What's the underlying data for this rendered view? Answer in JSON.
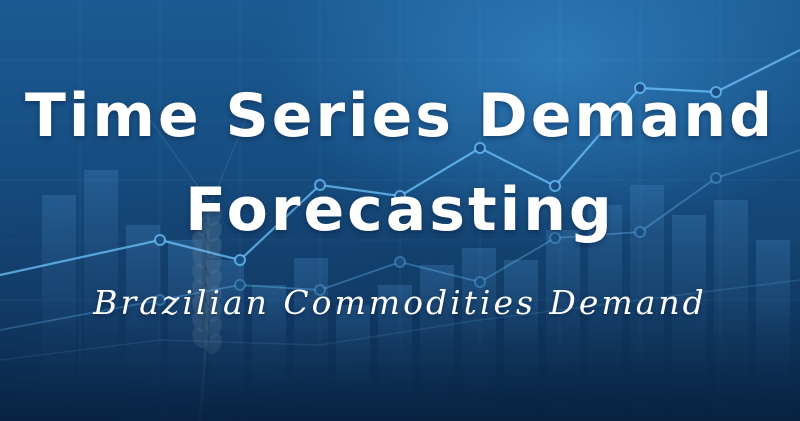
{
  "banner": {
    "title_line_1": "Time Series Demand",
    "title_line_2": "Forecasting",
    "subtitle": "Brazilian Commodities Demand"
  },
  "colors": {
    "background_top": "#1b5a92",
    "background_bottom": "#0b2b4f",
    "accent_line": "#6ec3ff",
    "text": "#ffffff"
  }
}
